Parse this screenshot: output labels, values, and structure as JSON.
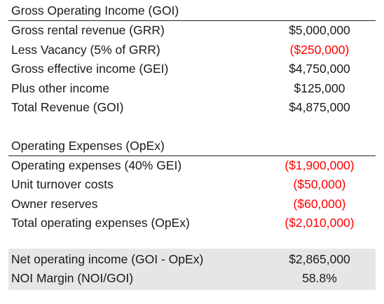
{
  "goi": {
    "title": "Gross Operating Income (GOI)",
    "rows": [
      {
        "label": "Gross rental revenue (GRR)",
        "value": "$5,000,000"
      },
      {
        "label": "Less Vacancy (5% of GRR)",
        "value": "($250,000)"
      },
      {
        "label": "Gross effective income (GEI)",
        "value": "$4,750,000"
      },
      {
        "label": "Plus other income",
        "value": "$125,000"
      },
      {
        "label": "Total Revenue (GOI)",
        "value": "$4,875,000"
      }
    ]
  },
  "opex": {
    "title": "Operating Expenses (OpEx)",
    "rows": [
      {
        "label": "Operating expenses (40% GEI)",
        "value": "($1,900,000)"
      },
      {
        "label": "Unit turnover costs",
        "value": "($50,000)"
      },
      {
        "label": "Owner reserves",
        "value": "($60,000)"
      },
      {
        "label": "Total operating expenses (OpEx)",
        "value": "($2,010,000)"
      }
    ]
  },
  "summary": {
    "rows": [
      {
        "label": "Net operating income (GOI - OpEx)",
        "value": "$2,865,000"
      },
      {
        "label": "NOI Margin (NOI/GOI)",
        "value": "58.8%"
      }
    ]
  },
  "colors": {
    "negative": "#ff0000",
    "summary_background": "#e6e6e6",
    "text": "#1a1a1a"
  }
}
